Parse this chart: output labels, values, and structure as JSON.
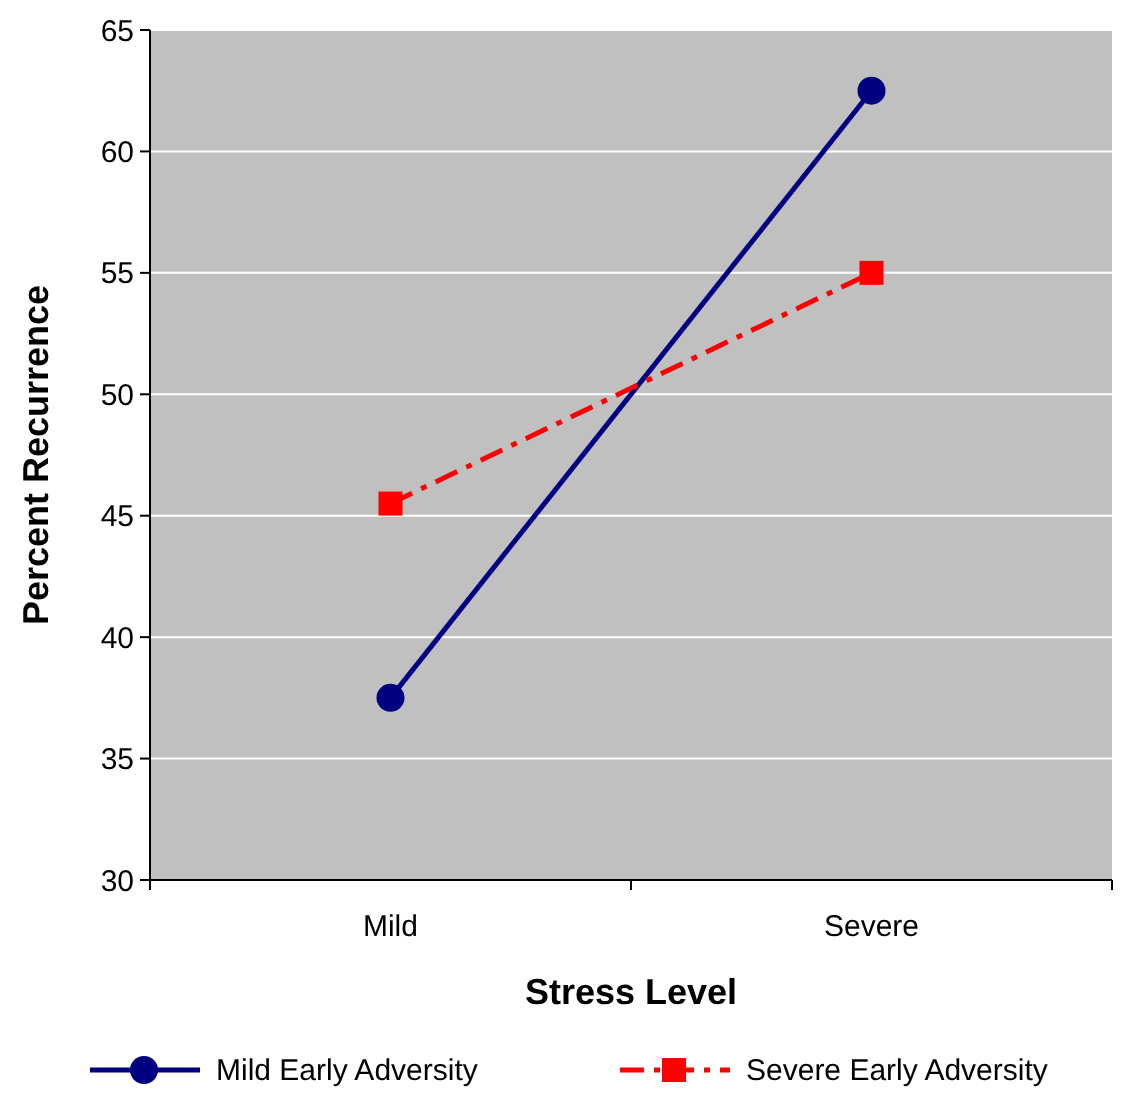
{
  "chart_data": {
    "type": "line",
    "xlabel": "Stress Level",
    "ylabel": "Percent Recurrence",
    "categories": [
      "Mild",
      "Severe"
    ],
    "series": [
      {
        "name": "Mild Early Adversity",
        "color": "#000080",
        "values": [
          37.5,
          62.5
        ],
        "marker": "circle",
        "line_style": "solid"
      },
      {
        "name": "Severe Early Adversity",
        "color": "#ff0000",
        "values": [
          45.5,
          55
        ],
        "marker": "square",
        "line_style": "dashdot"
      }
    ],
    "ylim": [
      30,
      65
    ],
    "yticks": [
      30,
      35,
      40,
      45,
      50,
      55,
      60,
      65
    ],
    "grid": "y",
    "legend": "bottom"
  }
}
